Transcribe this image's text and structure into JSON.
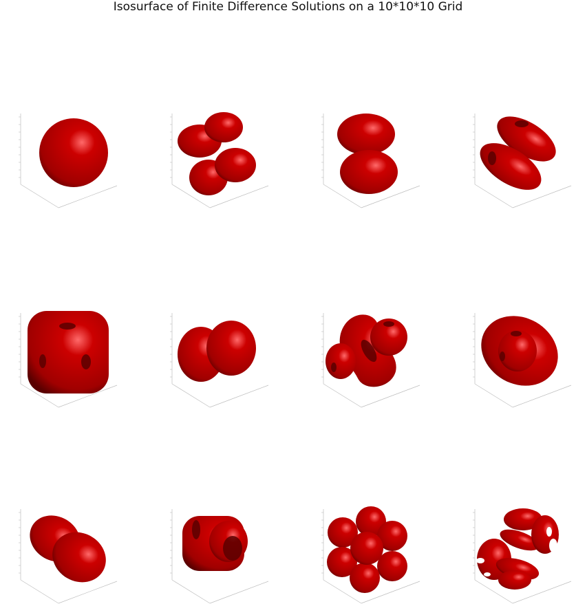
{
  "figure": {
    "title": "Isosurface of Finite Difference Solutions on a 10*10*10 Grid",
    "surface_color": "#cc0000",
    "highlight_color": "#ff6a6a",
    "shadow_color": "#5a0000",
    "axis_color": "#bdbdbd"
  },
  "panels": [
    {
      "id": 1,
      "shape": "sphere"
    },
    {
      "id": 2,
      "shape": "four-lobes"
    },
    {
      "id": 3,
      "shape": "two-stacked-lobes"
    },
    {
      "id": 4,
      "shape": "diagonal-rings"
    },
    {
      "id": 5,
      "shape": "rounded-cube-with-holes"
    },
    {
      "id": 6,
      "shape": "two-side-lobes"
    },
    {
      "id": 7,
      "shape": "twisted-lobes"
    },
    {
      "id": 8,
      "shape": "torus-with-sphere"
    },
    {
      "id": 9,
      "shape": "elongated-lobes"
    },
    {
      "id": 10,
      "shape": "ring-cluster"
    },
    {
      "id": 11,
      "shape": "seven-spheres"
    },
    {
      "id": 12,
      "shape": "complex-rings"
    }
  ]
}
